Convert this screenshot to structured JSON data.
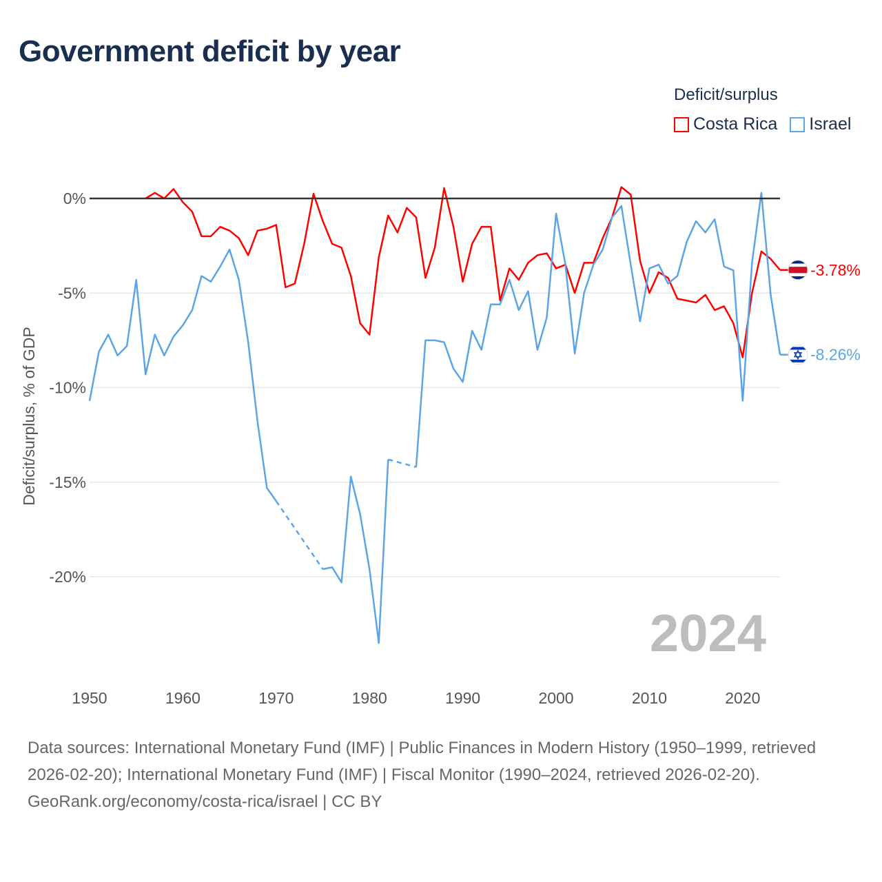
{
  "title": "Government deficit by year",
  "legend": {
    "title": "Deficit/surplus",
    "items": [
      {
        "label": "Costa Rica",
        "color": "#ff0000"
      },
      {
        "label": "Israel",
        "color": "#5ba4e6"
      }
    ]
  },
  "footer": {
    "sources": "Data sources: International Monetary Fund (IMF) | Public Finances in Modern History (1950–1999, retrieved 2026-02-20); International Monetary Fund (IMF) | Fiscal Monitor (1990–2024, retrieved 2026-02-20).",
    "credit": "GeoRank.org/economy/costa-rica/israel | CC BY"
  },
  "chart_data": {
    "type": "line",
    "title": "Government deficit by year",
    "ylabel": "Deficit/surplus, % of GDP",
    "xlabel": "",
    "year_watermark": "2024",
    "xlim": [
      1950,
      2024
    ],
    "ylim": [
      -25,
      2
    ],
    "x_ticks": [
      "1950",
      "1960",
      "1970",
      "1980",
      "1990",
      "2000",
      "2010",
      "2020"
    ],
    "y_ticks": [
      {
        "v": 0,
        "label": "0%"
      },
      {
        "v": -5,
        "label": "-5%"
      },
      {
        "v": -10,
        "label": "-10%"
      },
      {
        "v": -15,
        "label": "-15%"
      },
      {
        "v": -20,
        "label": "-20%"
      }
    ],
    "start_year": 1950,
    "series": [
      {
        "name": "Costa Rica",
        "color": "#ff0000",
        "end_label": "-3.78%",
        "flag": "costa-rica",
        "values": [
          null,
          null,
          null,
          null,
          null,
          null,
          0.0,
          0.3,
          0.0,
          0.5,
          -0.2,
          -0.7,
          -2.0,
          -2.0,
          -1.5,
          -1.7,
          -2.1,
          -3.0,
          -1.7,
          -1.6,
          -1.4,
          -4.7,
          -4.5,
          -2.4,
          0.25,
          -1.2,
          -2.4,
          -2.6,
          -4.1,
          -6.6,
          -7.2,
          -3.1,
          -0.9,
          -1.8,
          -0.5,
          -1.0,
          -4.2,
          -2.6,
          0.55,
          -1.5,
          -4.4,
          -2.4,
          -1.5,
          -1.5,
          -5.4,
          -3.7,
          -4.3,
          -3.4,
          -3.0,
          -2.9,
          -3.7,
          -3.5,
          -5.0,
          -3.4,
          -3.4,
          -2.1,
          -1.0,
          0.6,
          0.2,
          -3.3,
          -5.0,
          -3.9,
          -4.2,
          -5.3,
          -5.4,
          -5.5,
          -5.1,
          -5.9,
          -5.7,
          -6.6,
          -8.4,
          -5.0,
          -2.8,
          -3.2,
          -3.78
        ]
      },
      {
        "name": "Israel",
        "color": "#5ba4e6",
        "end_label": "-8.26%",
        "flag": "israel",
        "values": [
          -10.7,
          -8.1,
          -7.2,
          -8.3,
          -7.8,
          -4.3,
          -9.3,
          -7.2,
          -8.3,
          -7.3,
          -6.7,
          -5.9,
          -4.1,
          -4.4,
          -3.6,
          -2.7,
          -4.3,
          -7.6,
          -11.8,
          -15.3,
          -16.0,
          null,
          null,
          null,
          null,
          -19.6,
          -19.5,
          -20.3,
          -14.7,
          -16.7,
          -19.6,
          -23.5,
          -13.8,
          null,
          null,
          -14.2,
          -7.5,
          -7.5,
          -7.6,
          -9.0,
          -9.7,
          -7.0,
          -8.0,
          -5.6,
          -5.6,
          -4.3,
          -5.9,
          -4.9,
          -8.0,
          -6.3,
          -0.8,
          -3.5,
          -8.2,
          -5.0,
          -3.5,
          -2.7,
          -1.0,
          -0.4,
          -3.5,
          -6.5,
          -3.7,
          -3.5,
          -4.5,
          -4.1,
          -2.3,
          -1.2,
          -1.8,
          -1.1,
          -3.6,
          -3.8,
          -10.7,
          -3.4,
          0.3,
          -5.1,
          -8.26
        ]
      }
    ]
  }
}
